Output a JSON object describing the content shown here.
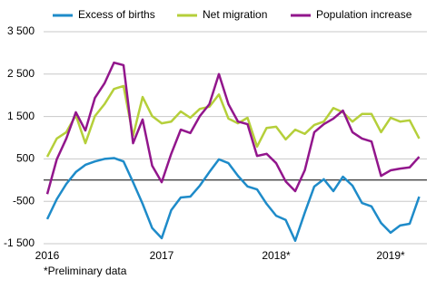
{
  "chart_data": {
    "type": "line",
    "categories": [
      "2016",
      null,
      null,
      null,
      null,
      null,
      null,
      null,
      null,
      null,
      null,
      null,
      "2017",
      null,
      null,
      null,
      null,
      null,
      null,
      null,
      null,
      null,
      null,
      null,
      "2018*",
      null,
      null,
      null,
      null,
      null,
      null,
      null,
      null,
      null,
      null,
      null,
      "2019*",
      null,
      null,
      null
    ],
    "series": [
      {
        "name": "Excess of births",
        "color": "#1e8bc9",
        "values": [
          -920,
          -450,
          -90,
          190,
          360,
          440,
          500,
          520,
          440,
          -50,
          -560,
          -1130,
          -1370,
          -710,
          -410,
          -390,
          -130,
          190,
          490,
          400,
          100,
          -150,
          -220,
          -560,
          -840,
          -940,
          -1430,
          -770,
          -150,
          20,
          -260,
          80,
          -130,
          -540,
          -620,
          -1010,
          -1240,
          -1070,
          -1030,
          -390
        ]
      },
      {
        "name": "Net migration",
        "color": "#b5cf3a",
        "values": [
          550,
          980,
          1130,
          1530,
          870,
          1510,
          1790,
          2150,
          2220,
          1040,
          1960,
          1510,
          1340,
          1380,
          1620,
          1470,
          1680,
          1730,
          2020,
          1450,
          1340,
          1470,
          790,
          1230,
          1260,
          960,
          1190,
          1090,
          1300,
          1380,
          1700,
          1600,
          1380,
          1560,
          1560,
          1130,
          1470,
          1380,
          1410,
          980
        ]
      },
      {
        "name": "Population increase",
        "color": "#92168c",
        "values": [
          -330,
          490,
          980,
          1600,
          1170,
          1940,
          2280,
          2770,
          2710,
          870,
          1430,
          340,
          -50,
          620,
          1190,
          1110,
          1510,
          1790,
          2500,
          1790,
          1380,
          1320,
          570,
          620,
          400,
          -30,
          -260,
          230,
          1130,
          1320,
          1450,
          1640,
          1130,
          980,
          910,
          100,
          230,
          270,
          300,
          550
        ]
      }
    ],
    "ylim": [
      -1500,
      3500
    ],
    "yticks": [
      {
        "value": -1500,
        "label": "-1 500"
      },
      -500,
      500,
      {
        "value": 1500,
        "label": "1 500"
      },
      {
        "value": 2500,
        "label": "2 500"
      },
      {
        "value": 3500,
        "label": "3 500"
      }
    ],
    "grid": true,
    "legend": "top",
    "footnote": "*Preliminary data"
  }
}
